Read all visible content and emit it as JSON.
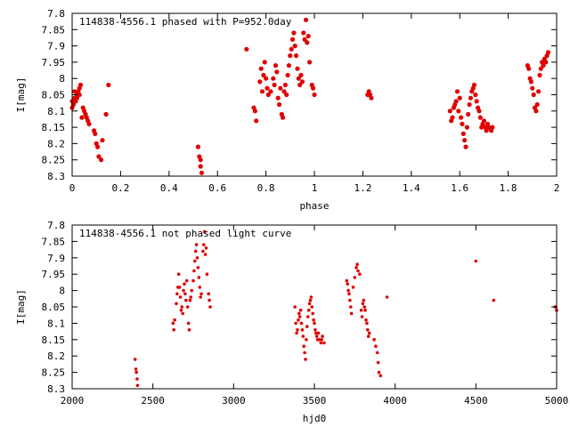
{
  "colors": {
    "marker": "#e00000",
    "axes": "#000000",
    "background": "#ffffff"
  },
  "chart_data": [
    {
      "type": "scatter",
      "title": "114838-4556.1 phased with P=952.0day",
      "xlabel": "phase",
      "ylabel": "I[mag]",
      "xlim": [
        0,
        2
      ],
      "ylim": [
        8.3,
        7.8
      ],
      "y_inverted": true,
      "grid": false,
      "xticks": [
        "0",
        "0.2",
        "0.4",
        "0.6",
        "0.8",
        "1",
        "1.2",
        "1.4",
        "1.6",
        "1.8",
        "2"
      ],
      "xtick_values": [
        0,
        0.2,
        0.4,
        0.6,
        0.8,
        1,
        1.2,
        1.4,
        1.6,
        1.8,
        2
      ],
      "yticks": [
        "7.8",
        "7.85",
        "7.9",
        "7.95",
        "8",
        "8.05",
        "8.1",
        "8.15",
        "8.2",
        "8.25",
        "8.3"
      ],
      "ytick_values": [
        7.8,
        7.85,
        7.9,
        7.95,
        8.0,
        8.05,
        8.1,
        8.15,
        8.2,
        8.25,
        8.3
      ],
      "series": [
        {
          "points": [
            [
              0.0,
              8.09
            ],
            [
              0.005,
              8.08
            ],
            [
              0.01,
              8.06
            ],
            [
              0.015,
              8.07
            ],
            [
              0.02,
              8.05
            ],
            [
              0.025,
              8.04
            ],
            [
              0.03,
              8.03
            ],
            [
              0.035,
              8.02
            ],
            [
              0.0,
              8.07
            ],
            [
              0.01,
              8.04
            ],
            [
              0.02,
              8.06
            ],
            [
              0.03,
              8.05
            ],
            [
              0.04,
              8.12
            ],
            [
              0.045,
              8.09
            ],
            [
              0.05,
              8.1
            ],
            [
              0.055,
              8.11
            ],
            [
              0.06,
              8.12
            ],
            [
              0.065,
              8.13
            ],
            [
              0.07,
              8.14
            ],
            [
              0.09,
              8.16
            ],
            [
              0.095,
              8.17
            ],
            [
              0.1,
              8.2
            ],
            [
              0.105,
              8.21
            ],
            [
              0.11,
              8.24
            ],
            [
              0.12,
              8.25
            ],
            [
              0.125,
              8.19
            ],
            [
              0.14,
              8.11
            ],
            [
              0.15,
              8.02
            ],
            [
              0.52,
              8.21
            ],
            [
              0.525,
              8.24
            ],
            [
              0.53,
              8.25
            ],
            [
              0.53,
              8.27
            ],
            [
              0.535,
              8.29
            ],
            [
              0.72,
              7.91
            ],
            [
              0.75,
              8.09
            ],
            [
              0.755,
              8.1
            ],
            [
              0.76,
              8.13
            ],
            [
              0.775,
              8.01
            ],
            [
              0.78,
              7.97
            ],
            [
              0.785,
              8.04
            ],
            [
              0.79,
              7.99
            ],
            [
              0.795,
              7.95
            ],
            [
              0.8,
              8.0
            ],
            [
              0.805,
              8.03
            ],
            [
              0.81,
              8.05
            ],
            [
              0.82,
              8.04
            ],
            [
              0.83,
              8.0
            ],
            [
              0.835,
              8.02
            ],
            [
              0.84,
              7.96
            ],
            [
              0.845,
              7.98
            ],
            [
              0.85,
              8.06
            ],
            [
              0.855,
              8.08
            ],
            [
              0.86,
              8.03
            ],
            [
              0.865,
              8.11
            ],
            [
              0.87,
              8.12
            ],
            [
              0.875,
              8.04
            ],
            [
              0.88,
              8.02
            ],
            [
              0.885,
              8.05
            ],
            [
              0.89,
              7.99
            ],
            [
              0.895,
              7.96
            ],
            [
              0.9,
              7.93
            ],
            [
              0.905,
              7.91
            ],
            [
              0.91,
              7.88
            ],
            [
              0.915,
              7.86
            ],
            [
              0.92,
              7.9
            ],
            [
              0.925,
              7.93
            ],
            [
              0.93,
              7.97
            ],
            [
              0.935,
              8.0
            ],
            [
              0.94,
              8.02
            ],
            [
              0.945,
              7.99
            ],
            [
              0.95,
              8.01
            ],
            [
              0.955,
              7.86
            ],
            [
              0.96,
              7.88
            ],
            [
              0.965,
              7.82
            ],
            [
              0.97,
              7.89
            ],
            [
              0.975,
              7.87
            ],
            [
              0.98,
              7.95
            ],
            [
              0.99,
              8.02
            ],
            [
              0.995,
              8.03
            ],
            [
              1.0,
              8.05
            ],
            [
              1.22,
              8.05
            ],
            [
              1.225,
              8.04
            ],
            [
              1.23,
              8.05
            ],
            [
              1.235,
              8.06
            ],
            [
              1.56,
              8.1
            ],
            [
              1.565,
              8.13
            ],
            [
              1.57,
              8.12
            ],
            [
              1.575,
              8.09
            ],
            [
              1.58,
              8.08
            ],
            [
              1.585,
              8.07
            ],
            [
              1.59,
              8.04
            ],
            [
              1.595,
              8.1
            ],
            [
              1.6,
              8.06
            ],
            [
              1.605,
              8.12
            ],
            [
              1.61,
              8.14
            ],
            [
              1.615,
              8.17
            ],
            [
              1.62,
              8.19
            ],
            [
              1.625,
              8.21
            ],
            [
              1.63,
              8.15
            ],
            [
              1.635,
              8.11
            ],
            [
              1.64,
              8.08
            ],
            [
              1.645,
              8.06
            ],
            [
              1.65,
              8.04
            ],
            [
              1.655,
              8.03
            ],
            [
              1.66,
              8.02
            ],
            [
              1.665,
              8.05
            ],
            [
              1.67,
              8.07
            ],
            [
              1.675,
              8.09
            ],
            [
              1.68,
              8.1
            ],
            [
              1.685,
              8.12
            ],
            [
              1.69,
              8.15
            ],
            [
              1.695,
              8.14
            ],
            [
              1.7,
              8.13
            ],
            [
              1.705,
              8.15
            ],
            [
              1.71,
              8.16
            ],
            [
              1.715,
              8.14
            ],
            [
              1.72,
              8.15
            ],
            [
              1.73,
              8.16
            ],
            [
              1.735,
              8.15
            ],
            [
              1.88,
              7.96
            ],
            [
              1.885,
              7.97
            ],
            [
              1.89,
              8.0
            ],
            [
              1.895,
              8.01
            ],
            [
              1.9,
              8.03
            ],
            [
              1.905,
              8.05
            ],
            [
              1.91,
              8.09
            ],
            [
              1.915,
              8.1
            ],
            [
              1.92,
              8.08
            ],
            [
              1.925,
              8.04
            ],
            [
              1.93,
              7.99
            ],
            [
              1.935,
              7.97
            ],
            [
              1.94,
              7.95
            ],
            [
              1.945,
              7.96
            ],
            [
              1.95,
              7.94
            ],
            [
              1.955,
              7.95
            ],
            [
              1.96,
              7.93
            ],
            [
              1.965,
              7.92
            ]
          ]
        }
      ]
    },
    {
      "type": "scatter",
      "title": "114838-4556.1 not phased light curve",
      "xlabel": "hjd0",
      "ylabel": "I[mag]",
      "xlim": [
        2000,
        5000
      ],
      "ylim": [
        8.3,
        7.8
      ],
      "y_inverted": true,
      "grid": false,
      "xticks": [
        "2000",
        "2500",
        "3000",
        "3500",
        "4000",
        "4500",
        "5000"
      ],
      "xtick_values": [
        2000,
        2500,
        3000,
        3500,
        4000,
        4500,
        5000
      ],
      "yticks": [
        "7.8",
        "7.85",
        "7.9",
        "7.95",
        "8",
        "8.05",
        "8.1",
        "8.15",
        "8.2",
        "8.25",
        "8.3"
      ],
      "ytick_values": [
        7.8,
        7.85,
        7.9,
        7.95,
        8.0,
        8.05,
        8.1,
        8.15,
        8.2,
        8.25,
        8.3
      ],
      "series": [
        {
          "points": [
            [
              2390,
              8.21
            ],
            [
              2395,
              8.24
            ],
            [
              2398,
              8.25
            ],
            [
              2402,
              8.27
            ],
            [
              2405,
              8.29
            ],
            [
              2625,
              8.1
            ],
            [
              2630,
              8.12
            ],
            [
              2635,
              8.09
            ],
            [
              2645,
              8.04
            ],
            [
              2650,
              8.01
            ],
            [
              2655,
              7.99
            ],
            [
              2660,
              7.95
            ],
            [
              2665,
              7.99
            ],
            [
              2670,
              8.02
            ],
            [
              2675,
              8.06
            ],
            [
              2680,
              8.05
            ],
            [
              2685,
              8.07
            ],
            [
              2690,
              8.0
            ],
            [
              2695,
              7.98
            ],
            [
              2700,
              8.01
            ],
            [
              2705,
              8.03
            ],
            [
              2710,
              7.97
            ],
            [
              2715,
              8.05
            ],
            [
              2720,
              8.1
            ],
            [
              2725,
              8.12
            ],
            [
              2730,
              8.03
            ],
            [
              2735,
              8.02
            ],
            [
              2740,
              8.0
            ],
            [
              2750,
              7.97
            ],
            [
              2755,
              7.94
            ],
            [
              2760,
              7.91
            ],
            [
              2765,
              7.88
            ],
            [
              2770,
              7.86
            ],
            [
              2775,
              7.9
            ],
            [
              2780,
              7.93
            ],
            [
              2785,
              7.96
            ],
            [
              2790,
              7.99
            ],
            [
              2795,
              8.02
            ],
            [
              2800,
              8.01
            ],
            [
              2810,
              7.88
            ],
            [
              2815,
              7.86
            ],
            [
              2820,
              7.82
            ],
            [
              2825,
              7.89
            ],
            [
              2830,
              7.87
            ],
            [
              2835,
              7.95
            ],
            [
              2845,
              8.01
            ],
            [
              2850,
              8.03
            ],
            [
              2855,
              8.05
            ],
            [
              3380,
              8.05
            ],
            [
              3385,
              8.1
            ],
            [
              3390,
              8.13
            ],
            [
              3395,
              8.12
            ],
            [
              3400,
              8.09
            ],
            [
              3405,
              8.07
            ],
            [
              3410,
              8.08
            ],
            [
              3415,
              8.06
            ],
            [
              3420,
              8.1
            ],
            [
              3425,
              8.12
            ],
            [
              3430,
              8.14
            ],
            [
              3435,
              8.17
            ],
            [
              3440,
              8.19
            ],
            [
              3445,
              8.21
            ],
            [
              3450,
              8.15
            ],
            [
              3455,
              8.11
            ],
            [
              3460,
              8.08
            ],
            [
              3465,
              8.06
            ],
            [
              3470,
              8.04
            ],
            [
              3475,
              8.03
            ],
            [
              3480,
              8.02
            ],
            [
              3485,
              8.05
            ],
            [
              3490,
              8.07
            ],
            [
              3495,
              8.09
            ],
            [
              3500,
              8.1
            ],
            [
              3505,
              8.12
            ],
            [
              3510,
              8.13
            ],
            [
              3515,
              8.14
            ],
            [
              3520,
              8.15
            ],
            [
              3525,
              8.13
            ],
            [
              3530,
              8.15
            ],
            [
              3540,
              8.16
            ],
            [
              3545,
              8.15
            ],
            [
              3550,
              8.14
            ],
            [
              3560,
              8.16
            ],
            [
              3700,
              7.97
            ],
            [
              3705,
              7.98
            ],
            [
              3710,
              8.0
            ],
            [
              3715,
              8.01
            ],
            [
              3720,
              8.03
            ],
            [
              3725,
              8.05
            ],
            [
              3730,
              8.07
            ],
            [
              3740,
              7.99
            ],
            [
              3750,
              7.96
            ],
            [
              3760,
              7.93
            ],
            [
              3765,
              7.92
            ],
            [
              3770,
              7.94
            ],
            [
              3780,
              7.95
            ],
            [
              3790,
              8.06
            ],
            [
              3795,
              8.08
            ],
            [
              3800,
              8.04
            ],
            [
              3805,
              8.03
            ],
            [
              3810,
              8.05
            ],
            [
              3815,
              8.06
            ],
            [
              3820,
              8.09
            ],
            [
              3825,
              8.1
            ],
            [
              3830,
              8.12
            ],
            [
              3835,
              8.14
            ],
            [
              3840,
              8.13
            ],
            [
              3870,
              8.15
            ],
            [
              3880,
              8.17
            ],
            [
              3890,
              8.19
            ],
            [
              3895,
              8.22
            ],
            [
              3900,
              8.25
            ],
            [
              3910,
              8.26
            ],
            [
              3950,
              8.02
            ],
            [
              4500,
              7.91
            ],
            [
              4610,
              8.03
            ],
            [
              4990,
              8.05
            ],
            [
              4995,
              8.05
            ],
            [
              5000,
              8.06
            ]
          ]
        }
      ]
    }
  ]
}
